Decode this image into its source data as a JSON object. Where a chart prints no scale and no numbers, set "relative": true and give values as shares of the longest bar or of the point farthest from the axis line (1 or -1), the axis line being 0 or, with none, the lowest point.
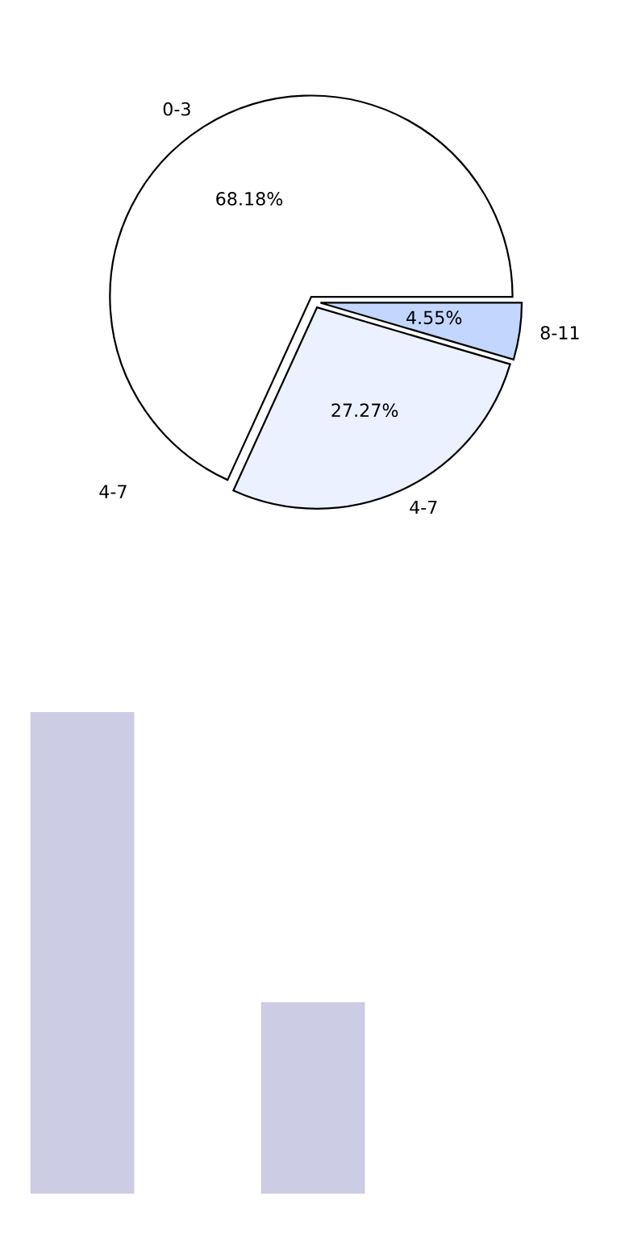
{
  "chart_data": [
    {
      "type": "pie",
      "categories": [
        "0-3",
        "4-7",
        "8-11"
      ],
      "values": [
        68.18,
        27.27,
        4.55
      ],
      "colors": [
        "#ffffff",
        "#ebf1fe",
        "#c3d7fe"
      ],
      "value_labels": [
        "68.18%",
        "27.27%",
        "4.55%"
      ],
      "annotations": [
        "4-7"
      ]
    },
    {
      "type": "bar",
      "relative": true,
      "categories": [
        null,
        null
      ],
      "values": [
        1,
        0.398
      ],
      "color": "#cccce4"
    }
  ]
}
